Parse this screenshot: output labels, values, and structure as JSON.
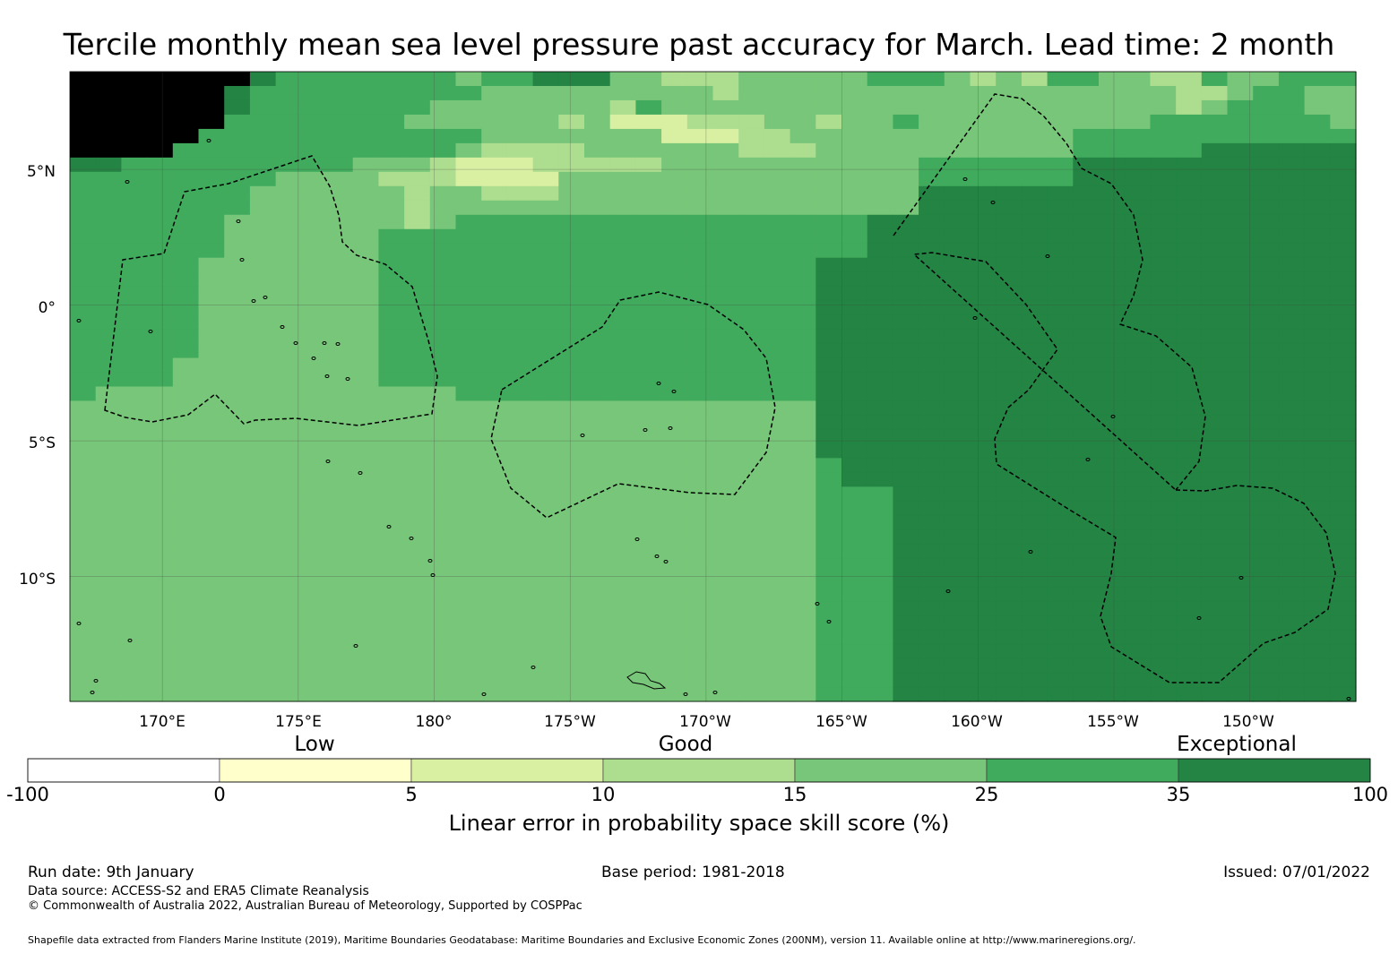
{
  "title": "Tercile monthly mean sea level pressure past accuracy for March. Lead time: 2 month",
  "map": {
    "lon_labels": [
      "170°E",
      "175°E",
      "180°",
      "175°W",
      "170°W",
      "165°W",
      "160°W",
      "155°W",
      "150°W"
    ],
    "lat_labels": [
      "5°N",
      "0°",
      "5°S",
      "10°S"
    ],
    "lon_range_deg_east": [
      166.6,
      213.9
    ],
    "lat_range": [
      -14.6,
      8.6
    ],
    "grid_resolution_deg": 0.83,
    "eez_outline_count": 5,
    "grid_rows_north_to_south": [
      "77777776555555545566644333444445554343554433544555",
      "77777765555555554444444443444444444444444443345544",
      "77777765555555444444435444444444444444444443455544",
      "77777755555554444443422233344344544444444455555554",
      "77777555555555554444444222334444444444455555555555",
      "77775555555555543333444444333444444444455555666666",
      "66555555555444322233333444444444455555566666666666",
      "55555555444433322224444444444444455555566666666666",
      "55555554444443443334444444444444466666666666666666",
      "55555554444443444444444444444444466666666666666666",
      "55555544444443455555555555555556666666666666666666",
      "55555544444455555555555555555556666666666666666666",
      "55555544444455555555555555555556666666666666666666",
      "55555444444455555555555555555666666666666666666666",
      "55555444444455555555555555555666666666666666666666",
      "55555444444455555555555555555666666666666666666666",
      "55555444444455555555555555555666666666666666666666",
      "55555444444455555555555555555666666666666666666666",
      "55555444444455555555555555555666666666666666666666",
      "55555444444455555555555555555666666666666666666666",
      "55554444444455555555555555555666666666666666666666",
      "55554444444455555555555555555666666666666666666666",
      "54444444444444455555555555555666666666666666666666",
      "44444444444444444444444444444666666666666666666666",
      "44444444444444444444444444444666666666666666666666",
      "44444444444444444444444444444666666666666666666666",
      "44444444444444444444444444444666666666666666666666",
      "44444444444444444444444444444566666666666666666666",
      "44444444444444444444444444444566666666666666666666",
      "44444444444444444444444444444555666666666666666666",
      "44444444444444444444444444444555666666666666666666",
      "44444444444444444444444444444555666666666666666666",
      "44444444444444444444444444444555666666666666666666",
      "44444444444444444444444444444555666666666666666666",
      "44444444444444444444444444444555666666666666666666",
      "44444444444444444444444444444555666666666666666666",
      "44444444444444444444444444444555666666666666666666",
      "44444444444444444444444444444555666666666666666666",
      "44444444444444444444444444444555666666666666666666",
      "44444444444444444444444444444555666666666666666666",
      "44444444444444444444444444444555666666666666666666",
      "44444444444444444444444444444555666666666666666666",
      "44444444444444444444444444444555666666666666666666",
      "44444444444444444444444444444555666666666666666666"
    ]
  },
  "legend": {
    "categories": [
      "Low",
      "Good",
      "Exceptional"
    ],
    "ticks": [
      "-100",
      "0",
      "5",
      "10",
      "15",
      "25",
      "35",
      "100"
    ],
    "colors": [
      "#ffffff",
      "#ffffcc",
      "#d9f0a3",
      "#addd8e",
      "#78c679",
      "#41ab5d",
      "#238443"
    ],
    "title": "Linear error in probability space skill score (%)"
  },
  "footer": {
    "run_date": "Run date: 9th January",
    "base_period": "Base period: 1981-2018",
    "issued": "Issued: 07/01/2022",
    "data_source": "Data source: ACCESS-S2 and ERA5 Climate Reanalysis",
    "copyright": "© Commonwealth of Australia 2022, Australian Bureau of Meteorology, Supported by COSPPac",
    "shapefile": "Shapefile data extracted from Flanders Marine Institute (2019), Maritime Boundaries Geodatabase: Maritime Boundaries and Exclusive Economic Zones (200NM), version 11. Available online at http://www.marineregions.org/."
  }
}
